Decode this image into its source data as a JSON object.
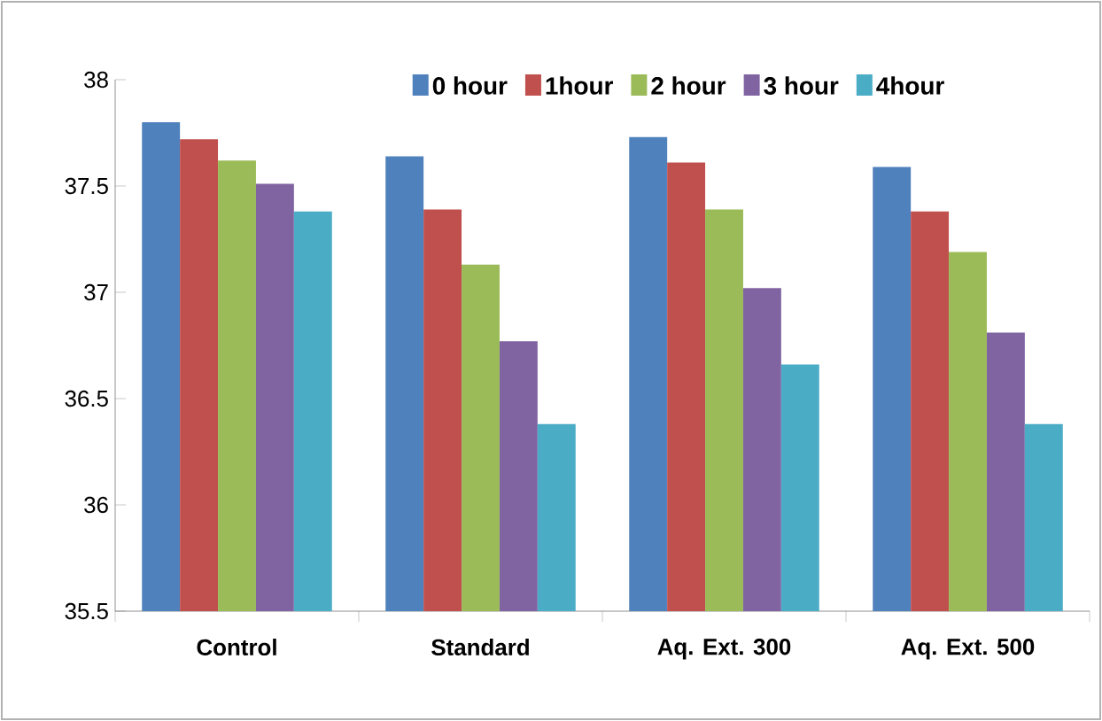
{
  "chart_data": {
    "type": "bar",
    "categories": [
      "Control",
      "Standard",
      "Aq. Ext.  300",
      "Aq. Ext. 500"
    ],
    "series": [
      {
        "name": "0 hour",
        "color": "#4f81bd",
        "values": [
          37.8,
          37.64,
          37.73,
          37.59
        ]
      },
      {
        "name": "1hour",
        "color": "#c0504d",
        "values": [
          37.72,
          37.39,
          37.61,
          37.38
        ]
      },
      {
        "name": "2 hour",
        "color": "#9bbb59",
        "values": [
          37.62,
          37.13,
          37.39,
          37.19
        ]
      },
      {
        "name": "3 hour",
        "color": "#8064a2",
        "values": [
          37.51,
          36.77,
          37.02,
          36.81
        ]
      },
      {
        "name": "4hour",
        "color": "#4bacc6",
        "values": [
          37.38,
          36.38,
          36.66,
          36.38
        ]
      }
    ],
    "ylim": [
      35.5,
      38
    ],
    "yticks": [
      35.5,
      36,
      36.5,
      37,
      37.5,
      38
    ],
    "grid": false,
    "legend": "top"
  }
}
